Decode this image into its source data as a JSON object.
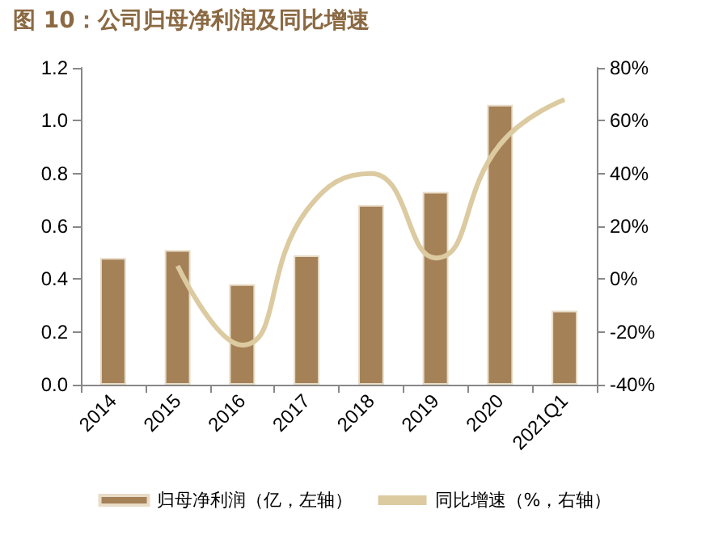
{
  "chart_data": {
    "type": "bar",
    "title": "图 10：公司归母净利润及同比增速",
    "categories": [
      "2014",
      "2015",
      "2016",
      "2017",
      "2018",
      "2019",
      "2020",
      "2021Q1"
    ],
    "series": [
      {
        "name": "归母净利润（亿，左轴）",
        "color": "#a58158",
        "values": [
          0.48,
          0.51,
          0.38,
          0.49,
          0.68,
          0.73,
          1.06,
          0.28
        ]
      },
      {
        "name": "同比增速（%，右轴）",
        "type": "line",
        "axis": "y2",
        "color": "#dccaa0",
        "values": [
          null,
          5,
          -25,
          26,
          40,
          8,
          51,
          68
        ]
      }
    ],
    "ylim": [
      0,
      1.2
    ],
    "yticks": [
      {
        "value": 0,
        "label": "0.0"
      },
      {
        "value": 0.2,
        "label": "0.2"
      },
      {
        "value": 0.4,
        "label": "0.4"
      },
      {
        "value": 0.6,
        "label": "0.6"
      },
      {
        "value": 0.8,
        "label": "0.8"
      },
      {
        "value": 1,
        "label": "1.0"
      },
      {
        "value": 1.2,
        "label": "1.2"
      }
    ],
    "y2lim": [
      -40,
      80
    ],
    "y2ticks": [
      {
        "value": -40,
        "label": "-40%"
      },
      {
        "value": -20,
        "label": "-20%"
      },
      {
        "value": 0,
        "label": "0%"
      },
      {
        "value": 20,
        "label": "20%"
      },
      {
        "value": 40,
        "label": "40%"
      },
      {
        "value": 60,
        "label": "60%"
      },
      {
        "value": 80,
        "label": "80%"
      }
    ],
    "grid": false,
    "legend": "bottom",
    "marker": "none"
  }
}
